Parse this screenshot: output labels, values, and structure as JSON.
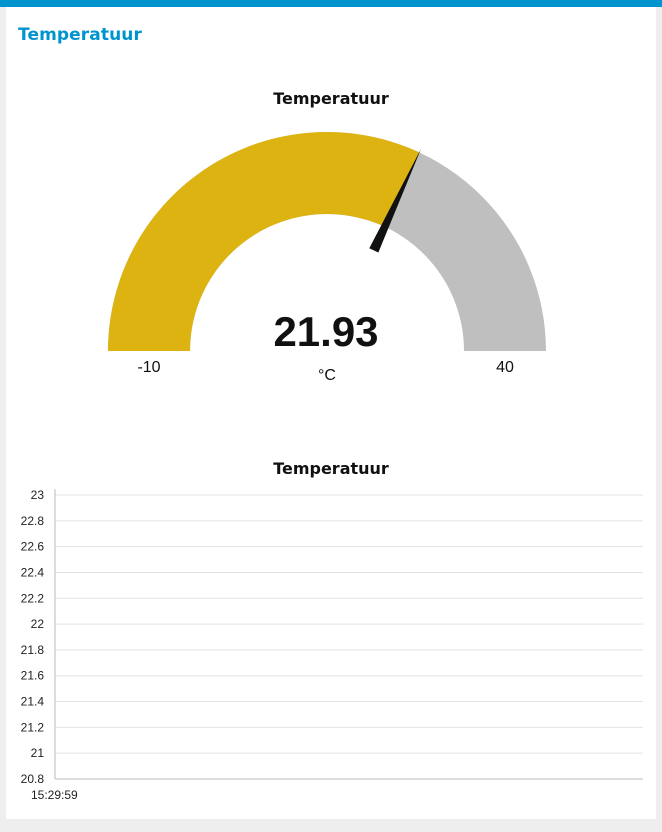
{
  "group": {
    "title": "Temperatuur"
  },
  "gauge": {
    "title": "Temperatuur",
    "value_text": "21.93",
    "value": 21.93,
    "min": -10,
    "max": 40,
    "min_label": "-10",
    "max_label": "40",
    "units": "°C",
    "colors": {
      "fill": "#dcb310",
      "track": "#bfbfbf",
      "needle": "#111111"
    }
  },
  "chart": {
    "title": "Temperatuur"
  },
  "chart_data": {
    "type": "line",
    "title": "Temperatuur",
    "xlabel": "",
    "ylabel": "",
    "x": [
      "15:29:59"
    ],
    "series": [],
    "ylim": [
      20.8,
      23
    ],
    "y_ticks": [
      "23",
      "22.8",
      "22.6",
      "22.4",
      "22.2",
      "22",
      "21.8",
      "21.6",
      "21.4",
      "21.2",
      "21",
      "20.8"
    ],
    "grid": true
  }
}
